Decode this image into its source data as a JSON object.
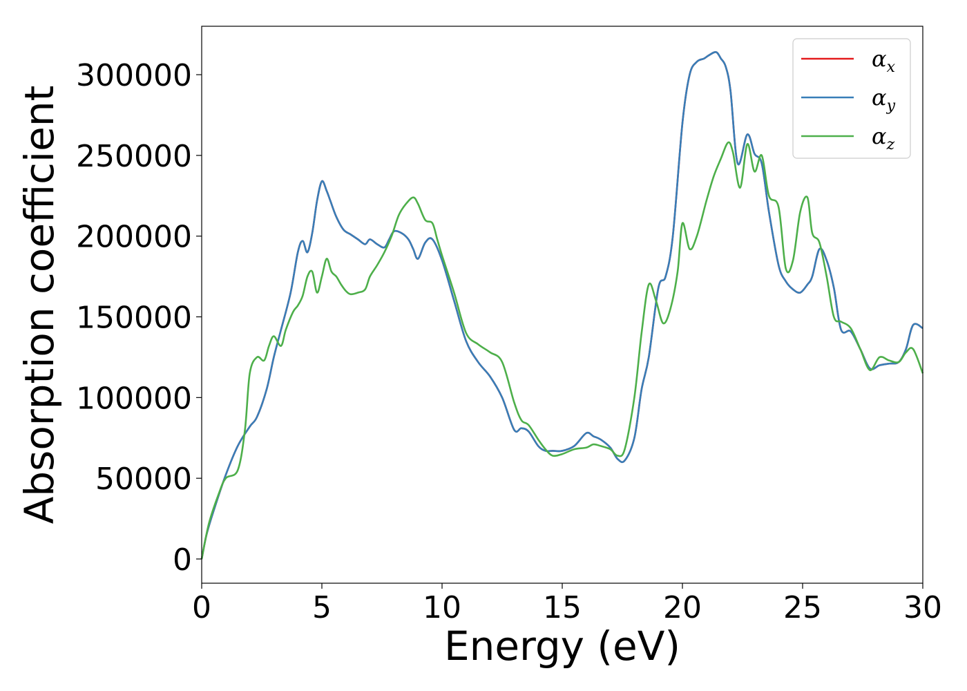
{
  "chart_data": {
    "type": "line",
    "title": "",
    "xlabel": "Energy (eV)",
    "ylabel": "Absorption coefficient",
    "xlim": [
      0,
      30
    ],
    "ylim": [
      -15000,
      330000
    ],
    "xticks": [
      0,
      5,
      10,
      15,
      20,
      25,
      30
    ],
    "yticks": [
      0,
      50000,
      100000,
      150000,
      200000,
      250000,
      300000
    ],
    "grid": false,
    "legend_position": "top-right",
    "series": [
      {
        "name": "α_x",
        "legend_base": "α",
        "legend_sub": "x",
        "color": "#e41a1c",
        "x": [
          0,
          0.2,
          0.5,
          1,
          1.5,
          2,
          2.3,
          2.7,
          3,
          3.3,
          3.7,
          4,
          4.2,
          4.4,
          4.6,
          4.8,
          5,
          5.2,
          5.35,
          5.6,
          5.9,
          6.2,
          6.5,
          6.8,
          7,
          7.3,
          7.6,
          7.8,
          8,
          8.3,
          8.6,
          8.8,
          9,
          9.3,
          9.6,
          10,
          10.5,
          11,
          11.5,
          12,
          12.5,
          13,
          13.3,
          13.6,
          14,
          14.3,
          14.6,
          15,
          15.5,
          16,
          16.3,
          16.6,
          17,
          17.3,
          17.6,
          18,
          18.3,
          18.6,
          19,
          19.3,
          19.6,
          20,
          20.3,
          20.6,
          20.9,
          21.1,
          21.4,
          21.6,
          21.8,
          22,
          22.3,
          22.7,
          23,
          23.3,
          23.6,
          24,
          24.3,
          24.6,
          24.9,
          25.2,
          25.4,
          25.7,
          26,
          26.3,
          26.6,
          27,
          27.4,
          27.8,
          28.2,
          28.6,
          29,
          29.3,
          29.6,
          30
        ],
        "y": [
          0,
          15000,
          30000,
          52000,
          70000,
          82000,
          88000,
          105000,
          125000,
          142000,
          165000,
          190000,
          197000,
          190000,
          202000,
          222000,
          234000,
          228000,
          222000,
          212000,
          204000,
          201000,
          198000,
          195000,
          198000,
          195000,
          193000,
          198000,
          203000,
          202000,
          198000,
          192000,
          186000,
          196000,
          198000,
          185000,
          160000,
          135000,
          122000,
          113000,
          100000,
          80000,
          81000,
          79000,
          70000,
          67000,
          67000,
          67000,
          70000,
          78000,
          76000,
          74000,
          69000,
          62000,
          61000,
          75000,
          105000,
          125000,
          168000,
          175000,
          200000,
          270000,
          300000,
          308000,
          310000,
          312000,
          314000,
          310000,
          305000,
          290000,
          245000,
          263000,
          251000,
          245000,
          215000,
          182000,
          172000,
          167000,
          165000,
          170000,
          175000,
          192000,
          185000,
          168000,
          142000,
          141000,
          130000,
          118000,
          120000,
          121000,
          122000,
          130000,
          145000,
          143000
        ]
      },
      {
        "name": "α_y",
        "legend_base": "α",
        "legend_sub": "y",
        "color": "#377eb8",
        "x": [
          0,
          0.2,
          0.5,
          1,
          1.5,
          2,
          2.3,
          2.7,
          3,
          3.3,
          3.7,
          4,
          4.2,
          4.4,
          4.6,
          4.8,
          5,
          5.2,
          5.35,
          5.6,
          5.9,
          6.2,
          6.5,
          6.8,
          7,
          7.3,
          7.6,
          7.8,
          8,
          8.3,
          8.6,
          8.8,
          9,
          9.3,
          9.6,
          10,
          10.5,
          11,
          11.5,
          12,
          12.5,
          13,
          13.3,
          13.6,
          14,
          14.3,
          14.6,
          15,
          15.5,
          16,
          16.3,
          16.6,
          17,
          17.3,
          17.6,
          18,
          18.3,
          18.6,
          19,
          19.3,
          19.6,
          20,
          20.3,
          20.6,
          20.9,
          21.1,
          21.4,
          21.6,
          21.8,
          22,
          22.3,
          22.7,
          23,
          23.3,
          23.6,
          24,
          24.3,
          24.6,
          24.9,
          25.2,
          25.4,
          25.7,
          26,
          26.3,
          26.6,
          27,
          27.4,
          27.8,
          28.2,
          28.6,
          29,
          29.3,
          29.6,
          30
        ],
        "y": [
          0,
          15000,
          30000,
          52000,
          70000,
          82000,
          88000,
          105000,
          125000,
          142000,
          165000,
          190000,
          197000,
          190000,
          202000,
          222000,
          234000,
          228000,
          222000,
          212000,
          204000,
          201000,
          198000,
          195000,
          198000,
          195000,
          193000,
          198000,
          203000,
          202000,
          198000,
          192000,
          186000,
          196000,
          198000,
          185000,
          160000,
          135000,
          122000,
          113000,
          100000,
          80000,
          81000,
          79000,
          70000,
          67000,
          67000,
          67000,
          70000,
          78000,
          76000,
          74000,
          69000,
          62000,
          61000,
          75000,
          105000,
          125000,
          168000,
          175000,
          200000,
          270000,
          300000,
          308000,
          310000,
          312000,
          314000,
          310000,
          305000,
          290000,
          245000,
          263000,
          251000,
          245000,
          215000,
          182000,
          172000,
          167000,
          165000,
          170000,
          175000,
          192000,
          185000,
          168000,
          142000,
          141000,
          130000,
          118000,
          120000,
          121000,
          122000,
          130000,
          145000,
          143000
        ]
      },
      {
        "name": "α_z",
        "legend_base": "α",
        "legend_sub": "z",
        "color": "#4daf4a",
        "x": [
          0,
          0.3,
          0.7,
          1,
          1.5,
          1.8,
          2,
          2.3,
          2.6,
          2.8,
          3,
          3.3,
          3.5,
          3.8,
          4,
          4.2,
          4.4,
          4.6,
          4.8,
          5,
          5.2,
          5.4,
          5.6,
          5.8,
          6,
          6.2,
          6.5,
          6.8,
          7,
          7.3,
          7.6,
          7.9,
          8.2,
          8.5,
          8.8,
          9,
          9.3,
          9.6,
          9.8,
          10,
          10.5,
          11,
          11.5,
          12,
          12.5,
          13,
          13.3,
          13.6,
          14,
          14.3,
          14.6,
          15,
          15.5,
          16,
          16.3,
          16.6,
          17,
          17.3,
          17.6,
          18,
          18.3,
          18.6,
          18.9,
          19.2,
          19.5,
          19.8,
          20,
          20.3,
          20.6,
          21,
          21.3,
          21.6,
          21.9,
          22.1,
          22.4,
          22.7,
          23,
          23.3,
          23.6,
          24,
          24.3,
          24.6,
          24.9,
          25.2,
          25.4,
          25.7,
          26,
          26.3,
          26.6,
          27,
          27.4,
          27.8,
          28.2,
          28.6,
          29,
          29.3,
          29.6,
          30
        ],
        "y": [
          0,
          22000,
          40000,
          50000,
          55000,
          80000,
          115000,
          125000,
          123000,
          132000,
          138000,
          132000,
          142000,
          153000,
          157000,
          163000,
          175000,
          178000,
          165000,
          175000,
          186000,
          178000,
          175000,
          170000,
          166000,
          164000,
          165000,
          167000,
          175000,
          182000,
          190000,
          200000,
          213000,
          220000,
          224000,
          220000,
          210000,
          208000,
          198000,
          188000,
          165000,
          140000,
          133000,
          128000,
          122000,
          97000,
          86000,
          83000,
          74000,
          68000,
          64000,
          65000,
          68000,
          69000,
          71000,
          70000,
          68000,
          64000,
          68000,
          100000,
          140000,
          170000,
          160000,
          146000,
          155000,
          178000,
          208000,
          192000,
          200000,
          222000,
          237000,
          248000,
          258000,
          252000,
          230000,
          257000,
          240000,
          250000,
          225000,
          218000,
          180000,
          185000,
          215000,
          224000,
          202000,
          196000,
          175000,
          150000,
          147000,
          143000,
          130000,
          117000,
          125000,
          123000,
          122000,
          128000,
          130000,
          115000
        ]
      }
    ]
  }
}
